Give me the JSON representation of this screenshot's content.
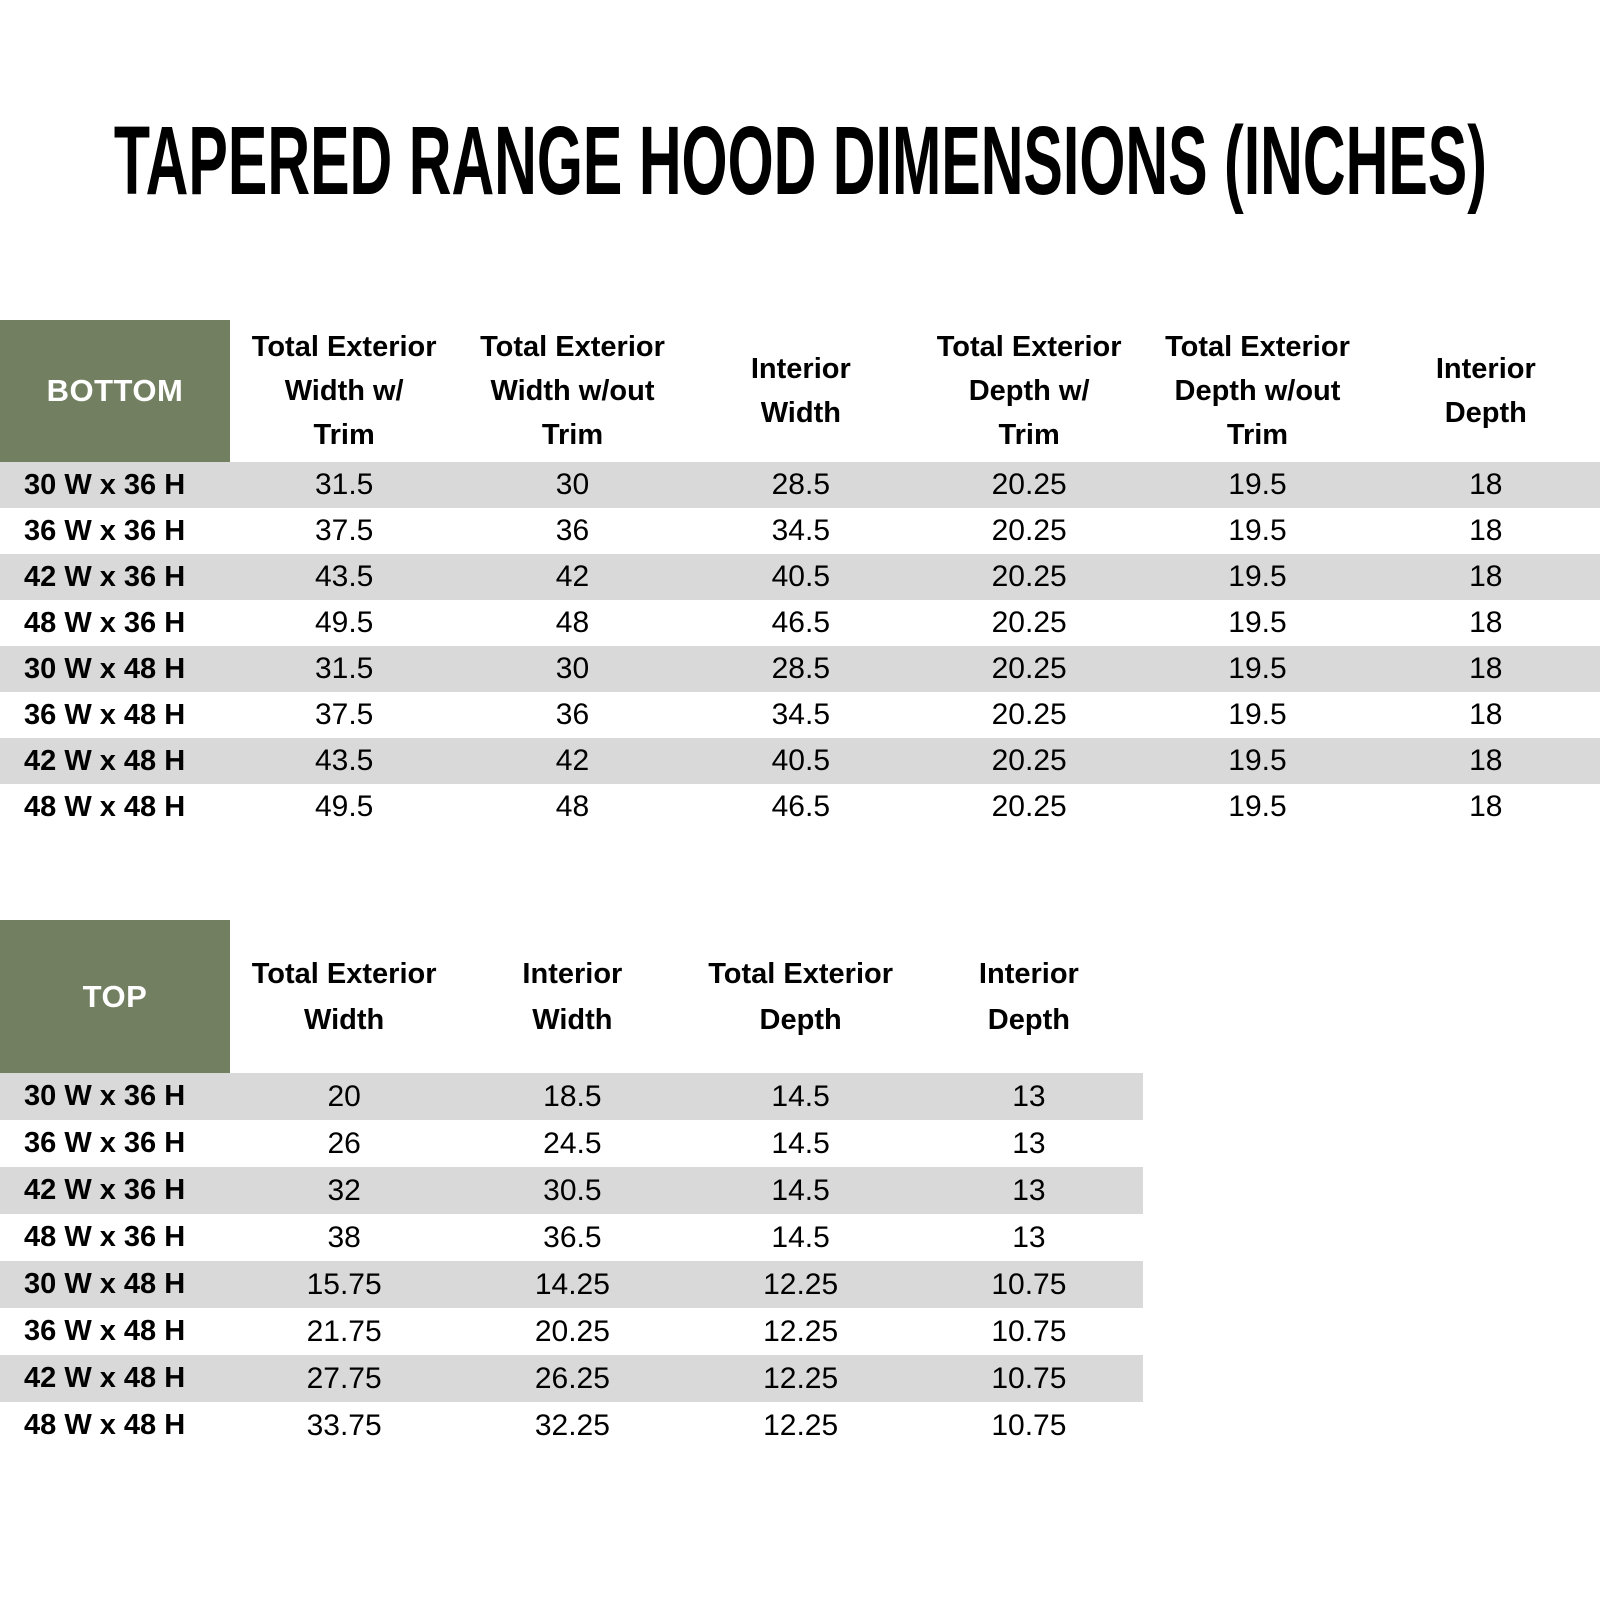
{
  "page": {
    "title": "TAPERED RANGE HOOD DIMENSIONS (INCHES)"
  },
  "colors": {
    "header_green": "#727F61",
    "row_stripe_gray": "#D9D9D9",
    "corner_text_white": "#FFFFFF",
    "body_text_black": "#000000",
    "background_white": "#FFFFFF"
  },
  "bottom_table": {
    "corner_label": "BOTTOM",
    "columns": [
      "Total Exterior\nWidth w/\nTrim",
      "Total Exterior\nWidth w/out\nTrim",
      "Interior\nWidth",
      "Total Exterior\nDepth w/\nTrim",
      "Total Exterior\nDepth w/out\nTrim",
      "Interior\nDepth"
    ],
    "rows": [
      {
        "label": "30 W x 36 H",
        "values": [
          "31.5",
          "30",
          "28.5",
          "20.25",
          "19.5",
          "18"
        ]
      },
      {
        "label": "36 W x 36 H",
        "values": [
          "37.5",
          "36",
          "34.5",
          "20.25",
          "19.5",
          "18"
        ]
      },
      {
        "label": "42 W x 36 H",
        "values": [
          "43.5",
          "42",
          "40.5",
          "20.25",
          "19.5",
          "18"
        ]
      },
      {
        "label": "48 W x 36 H",
        "values": [
          "49.5",
          "48",
          "46.5",
          "20.25",
          "19.5",
          "18"
        ]
      },
      {
        "label": "30 W x 48 H",
        "values": [
          "31.5",
          "30",
          "28.5",
          "20.25",
          "19.5",
          "18"
        ]
      },
      {
        "label": "36 W x 48 H",
        "values": [
          "37.5",
          "36",
          "34.5",
          "20.25",
          "19.5",
          "18"
        ]
      },
      {
        "label": "42 W x 48 H",
        "values": [
          "43.5",
          "42",
          "40.5",
          "20.25",
          "19.5",
          "18"
        ]
      },
      {
        "label": "48 W x 48 H",
        "values": [
          "49.5",
          "48",
          "46.5",
          "20.25",
          "19.5",
          "18"
        ]
      }
    ]
  },
  "top_table": {
    "corner_label": "TOP",
    "columns": [
      "Total Exterior\nWidth",
      "Interior\nWidth",
      "Total Exterior\nDepth",
      "Interior\nDepth"
    ],
    "rows": [
      {
        "label": "30 W x 36 H",
        "values": [
          "20",
          "18.5",
          "14.5",
          "13"
        ]
      },
      {
        "label": "36 W x 36 H",
        "values": [
          "26",
          "24.5",
          "14.5",
          "13"
        ]
      },
      {
        "label": "42 W x 36 H",
        "values": [
          "32",
          "30.5",
          "14.5",
          "13"
        ]
      },
      {
        "label": "48 W x 36 H",
        "values": [
          "38",
          "36.5",
          "14.5",
          "13"
        ]
      },
      {
        "label": "30 W x 48 H",
        "values": [
          "15.75",
          "14.25",
          "12.25",
          "10.75"
        ]
      },
      {
        "label": "36 W x 48 H",
        "values": [
          "21.75",
          "20.25",
          "12.25",
          "10.75"
        ]
      },
      {
        "label": "42 W x 48 H",
        "values": [
          "27.75",
          "26.25",
          "12.25",
          "10.75"
        ]
      },
      {
        "label": "48 W x 48 H",
        "values": [
          "33.75",
          "32.25",
          "12.25",
          "10.75"
        ]
      }
    ]
  }
}
